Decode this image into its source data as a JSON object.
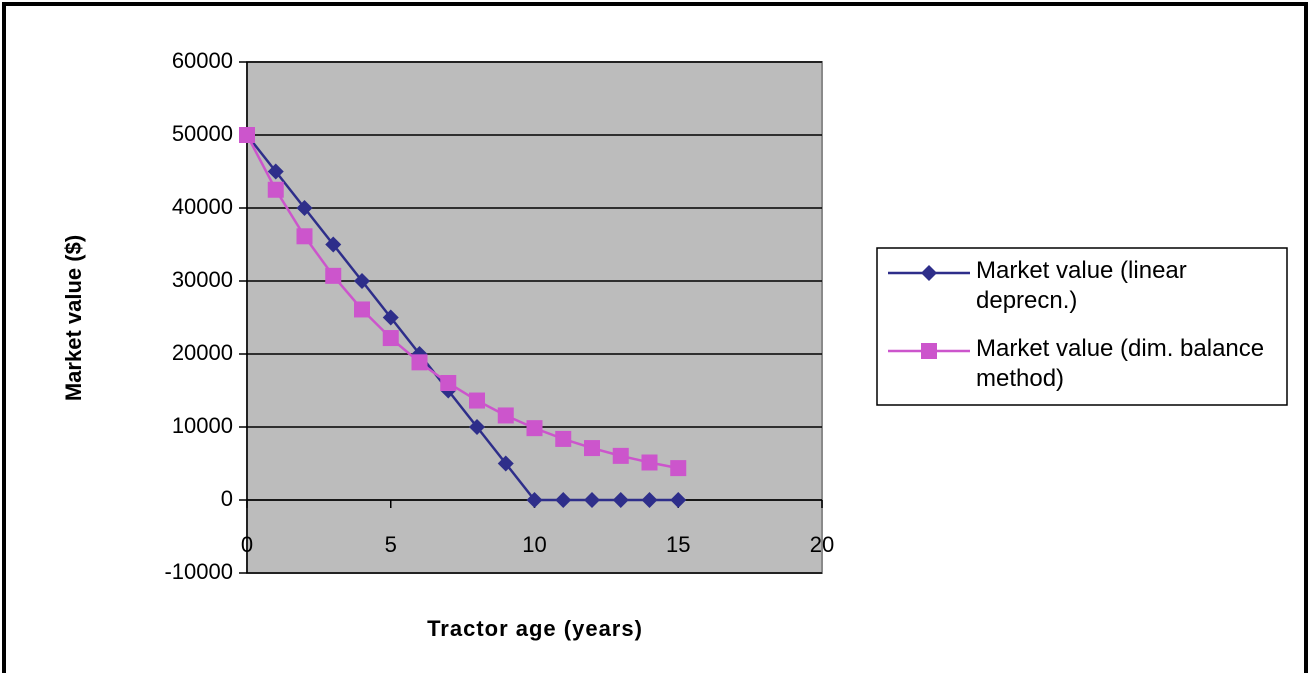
{
  "chart_data": {
    "type": "line",
    "xlabel": "Tractor age (years)",
    "ylabel": "Market value ($)",
    "x": [
      0,
      1,
      2,
      3,
      4,
      5,
      6,
      7,
      8,
      9,
      10,
      11,
      12,
      13,
      14,
      15
    ],
    "series": [
      {
        "name": "Market value (linear deprecn.)",
        "color": "#2e2e8a",
        "marker": "diamond",
        "values": [
          50000,
          45000,
          40000,
          35000,
          30000,
          25000,
          20000,
          15000,
          10000,
          5000,
          0,
          0,
          0,
          0,
          0,
          0
        ]
      },
      {
        "name": "Market value (dim. balance method)",
        "color": "#cc55cc",
        "marker": "square",
        "values": [
          50000,
          42500,
          36125,
          30706,
          26100,
          22185,
          18857,
          16028,
          13624,
          11580,
          9843,
          8367,
          7112,
          6045,
          5138,
          4368
        ]
      }
    ],
    "xlim": [
      0,
      20
    ],
    "xticks": [
      0,
      5,
      10,
      15,
      20
    ],
    "ylim": [
      -10000,
      60000
    ],
    "yticks": [
      -10000,
      0,
      10000,
      20000,
      30000,
      40000,
      50000,
      60000
    ],
    "grid": true,
    "legend": "right"
  }
}
